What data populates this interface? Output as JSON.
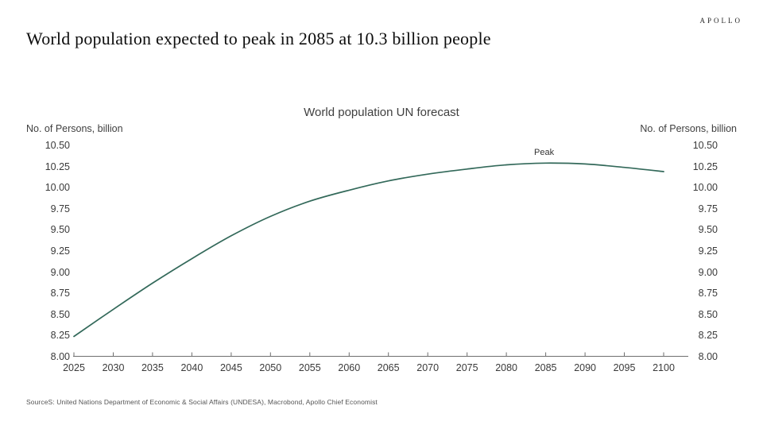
{
  "header": {
    "title": "World population expected to peak in 2085 at 10.3 billion people",
    "logo": "APOLLO"
  },
  "chart_data": {
    "type": "line",
    "title": "World population UN forecast",
    "ylabel_left": "No. of Persons, billion",
    "ylabel_right": "No. of Persons, billion",
    "x": [
      2025,
      2030,
      2035,
      2040,
      2045,
      2050,
      2055,
      2060,
      2065,
      2070,
      2075,
      2080,
      2085,
      2090,
      2095,
      2100
    ],
    "series": [
      {
        "name": "World population UN forecast",
        "values": [
          8.24,
          8.56,
          8.87,
          9.16,
          9.43,
          9.66,
          9.84,
          9.97,
          10.08,
          10.16,
          10.22,
          10.27,
          10.29,
          10.28,
          10.24,
          10.19
        ],
        "color": "#33695A"
      }
    ],
    "ylim": [
      8.0,
      10.5
    ],
    "y_ticks": [
      "10.50",
      "10.25",
      "10.00",
      "9.75",
      "9.50",
      "9.25",
      "9.00",
      "8.75",
      "8.50",
      "8.25",
      "8.00"
    ],
    "x_ticks": [
      "2025",
      "2030",
      "2035",
      "2040",
      "2045",
      "2050",
      "2055",
      "2060",
      "2065",
      "2070",
      "2075",
      "2080",
      "2085",
      "2090",
      "2095",
      "2100"
    ],
    "annotations": [
      {
        "text": "Peak",
        "x": 2085,
        "y": 10.29
      }
    ],
    "grid": false,
    "legend_position": "none",
    "axis_color": "#6e6e6e"
  },
  "footer": {
    "sources": "SourceS: United Nations Department of Economic & Social Affairs (UNDESA), Macrobond, Apollo Chief Economist"
  }
}
